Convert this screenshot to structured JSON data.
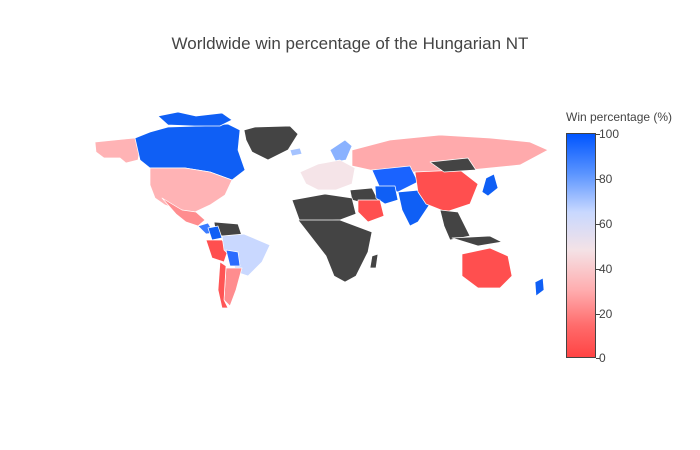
{
  "title": "Worldwide win percentage of the Hungarian NT",
  "colorbar": {
    "title": "Win percentage (%)",
    "ticks": [
      "100",
      "80",
      "60",
      "40",
      "20",
      "0"
    ],
    "colors": {
      "high": "#0055ff",
      "mid": "#f2f2f6",
      "low": "#ff4444",
      "no_data": "#444444",
      "border": "#ffffff"
    }
  },
  "chart_data": {
    "type": "choropleth",
    "title": "Worldwide win percentage of the Hungarian NT",
    "colorbar_title": "Win percentage (%)",
    "range": [
      0,
      100
    ],
    "colorscale": "red-white-blue",
    "regions": [
      {
        "name": "Canada",
        "win_pct": 95
      },
      {
        "name": "Alaska (USA)",
        "win_pct": 30
      },
      {
        "name": "United States",
        "win_pct": 30
      },
      {
        "name": "Greenland",
        "win_pct": null
      },
      {
        "name": "Mexico",
        "win_pct": 25
      },
      {
        "name": "Central America",
        "win_pct": 85
      },
      {
        "name": "Colombia",
        "win_pct": 95
      },
      {
        "name": "Venezuela",
        "win_pct": null
      },
      {
        "name": "Peru",
        "win_pct": 10
      },
      {
        "name": "Brazil",
        "win_pct": 60
      },
      {
        "name": "Bolivia",
        "win_pct": 90
      },
      {
        "name": "Argentina",
        "win_pct": 15
      },
      {
        "name": "Chile",
        "win_pct": 10
      },
      {
        "name": "Russia",
        "win_pct": 30
      },
      {
        "name": "Scandinavia",
        "win_pct": 70
      },
      {
        "name": "Europe",
        "win_pct": 55
      },
      {
        "name": "Iceland",
        "win_pct": 65
      },
      {
        "name": "North Africa",
        "win_pct": null
      },
      {
        "name": "Saudi Arabia",
        "win_pct": 10
      },
      {
        "name": "Iran",
        "win_pct": 95
      },
      {
        "name": "Central Asia",
        "win_pct": 90
      },
      {
        "name": "India",
        "win_pct": 95
      },
      {
        "name": "China",
        "win_pct": 10
      },
      {
        "name": "Japan",
        "win_pct": 95
      },
      {
        "name": "Africa",
        "win_pct": null
      },
      {
        "name": "Australia",
        "win_pct": 10
      },
      {
        "name": "New Zealand",
        "win_pct": 95
      }
    ]
  }
}
